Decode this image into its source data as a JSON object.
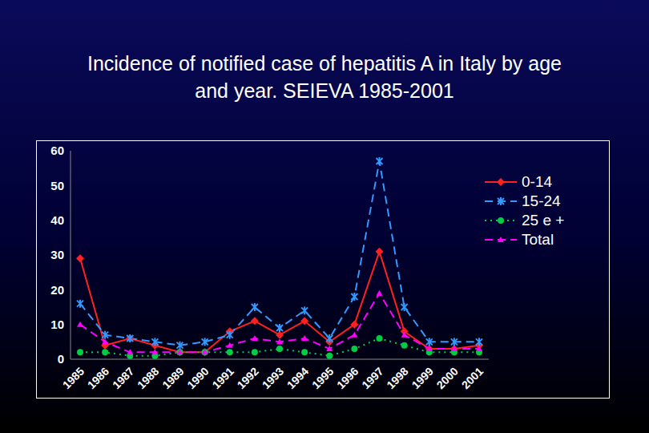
{
  "chart_data": {
    "type": "line",
    "title": "Incidence of notified case of hepatitis A in Italy by age and year. SEIEVA 1985-2001",
    "categories": [
      "1985",
      "1986",
      "1987",
      "1988",
      "1989",
      "1990",
      "1991",
      "1992",
      "1993",
      "1994",
      "1995",
      "1996",
      "1997",
      "1998",
      "1999",
      "2000",
      "2001"
    ],
    "series": [
      {
        "name": "0-14",
        "color": "#ff2020",
        "marker": "diamond",
        "line_style": "solid",
        "values": [
          29,
          4,
          6,
          4,
          2,
          2,
          8,
          11,
          7,
          11,
          5,
          10,
          31,
          8,
          3,
          3,
          4
        ]
      },
      {
        "name": "15-24",
        "color": "#3399ff",
        "marker": "x",
        "line_style": "dashed",
        "values": [
          16,
          7,
          6,
          5,
          4,
          5,
          7,
          15,
          9,
          14,
          6,
          18,
          57,
          15,
          5,
          5,
          5
        ]
      },
      {
        "name": "25 e +",
        "color": "#00cc44",
        "marker": "circle",
        "line_style": "dotted",
        "values": [
          2,
          2,
          1,
          1,
          2,
          2,
          2,
          2,
          3,
          2,
          1,
          3,
          6,
          4,
          2,
          2,
          2
        ]
      },
      {
        "name": "Total",
        "color": "#ff00ff",
        "marker": "triangle",
        "line_style": "dashed",
        "values": [
          10,
          5,
          2,
          2,
          2,
          2,
          4,
          6,
          5,
          6,
          3,
          7,
          19,
          7,
          3,
          3,
          3
        ]
      }
    ],
    "ylim": [
      0,
      60
    ],
    "yticks": [
      0,
      10,
      20,
      30,
      40,
      50,
      60
    ],
    "grid": false,
    "legend": "top-right"
  }
}
